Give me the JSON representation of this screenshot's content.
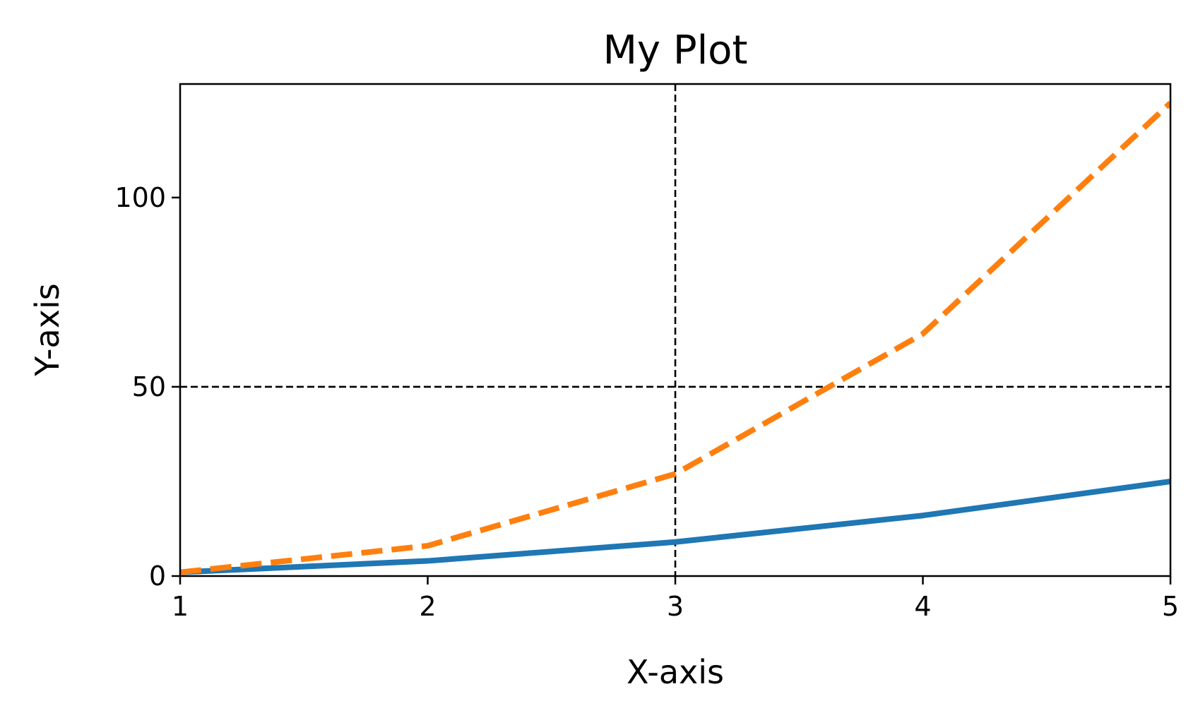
{
  "chart_data": {
    "type": "line",
    "title": "My Plot",
    "xlabel": "X-axis",
    "ylabel": "Y-axis",
    "x": [
      1,
      2,
      3,
      4,
      5
    ],
    "xlim": [
      1,
      5
    ],
    "ylim": [
      0,
      130
    ],
    "xticks": [
      1,
      2,
      3,
      4,
      5
    ],
    "yticks": [
      0,
      50,
      100
    ],
    "grid": false,
    "reference_lines": [
      {
        "orientation": "vertical",
        "value": 3,
        "style": "dashed",
        "color": "#000000"
      },
      {
        "orientation": "horizontal",
        "value": 50,
        "style": "dashed",
        "color": "#000000"
      }
    ],
    "series": [
      {
        "values": [
          1,
          4,
          9,
          16,
          25
        ],
        "color": "#1f77b4",
        "style": "solid"
      },
      {
        "values": [
          1,
          8,
          27,
          64,
          125
        ],
        "color": "#ff7f0e",
        "style": "dashed"
      }
    ]
  }
}
